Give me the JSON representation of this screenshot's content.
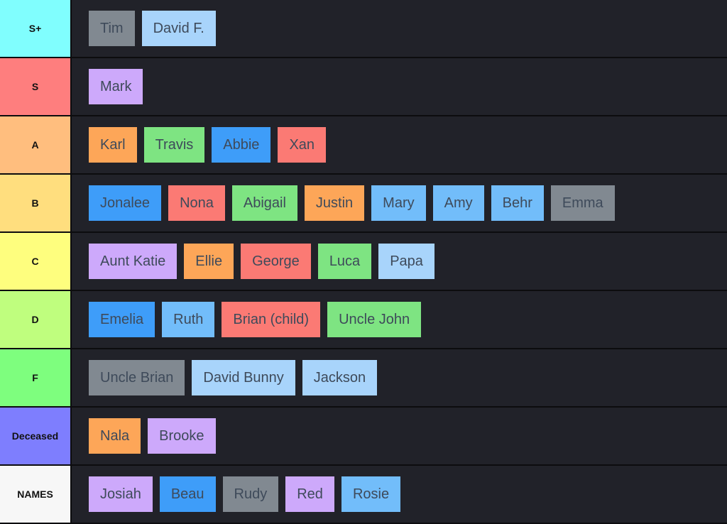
{
  "palette": {
    "gray": "#818991",
    "lightblue": "#a8d4fb",
    "purple": "#cda9fb",
    "orange": "#fda658",
    "green": "#7ee482",
    "blue": "#3e9df9",
    "red": "#fb7a74",
    "skyblue": "#72bdfa"
  },
  "tiers": [
    {
      "label": "S+",
      "color": "#80fefe",
      "items": [
        {
          "name": "Tim",
          "color": "gray"
        },
        {
          "name": "David F.",
          "color": "lightblue"
        }
      ]
    },
    {
      "label": "S",
      "color": "#fe7e7e",
      "items": [
        {
          "name": "Mark",
          "color": "purple"
        }
      ]
    },
    {
      "label": "A",
      "color": "#ffbe7e",
      "items": [
        {
          "name": "Karl",
          "color": "orange"
        },
        {
          "name": "Travis",
          "color": "green"
        },
        {
          "name": "Abbie",
          "color": "blue"
        },
        {
          "name": "Xan",
          "color": "red"
        }
      ]
    },
    {
      "label": "B",
      "color": "#ffde7e",
      "items": [
        {
          "name": "Jonalee",
          "color": "blue"
        },
        {
          "name": "Nona",
          "color": "red"
        },
        {
          "name": "Abigail",
          "color": "green"
        },
        {
          "name": "Justin",
          "color": "orange"
        },
        {
          "name": "Mary",
          "color": "skyblue"
        },
        {
          "name": "Amy",
          "color": "skyblue"
        },
        {
          "name": "Behr",
          "color": "skyblue"
        },
        {
          "name": "Emma",
          "color": "gray"
        }
      ]
    },
    {
      "label": "C",
      "color": "#fefe7e",
      "items": [
        {
          "name": "Aunt Katie",
          "color": "purple"
        },
        {
          "name": "Ellie",
          "color": "orange"
        },
        {
          "name": "George",
          "color": "red"
        },
        {
          "name": "Luca",
          "color": "green"
        },
        {
          "name": "Papa",
          "color": "lightblue"
        }
      ]
    },
    {
      "label": "D",
      "color": "#bffe7e",
      "items": [
        {
          "name": "Emelia",
          "color": "blue"
        },
        {
          "name": "Ruth",
          "color": "skyblue"
        },
        {
          "name": "Brian (child)",
          "color": "red"
        },
        {
          "name": "Uncle John",
          "color": "green"
        }
      ]
    },
    {
      "label": "F",
      "color": "#7efe7e",
      "items": [
        {
          "name": "Uncle Brian",
          "color": "gray"
        },
        {
          "name": "David Bunny",
          "color": "lightblue"
        },
        {
          "name": "Jackson",
          "color": "lightblue"
        }
      ]
    },
    {
      "label": "Deceased",
      "color": "#7e7efe",
      "items": [
        {
          "name": "Nala",
          "color": "orange"
        },
        {
          "name": "Brooke",
          "color": "purple"
        }
      ]
    },
    {
      "label": "NAMES",
      "color": "#f7f7f7",
      "items": [
        {
          "name": "Josiah",
          "color": "purple"
        },
        {
          "name": "Beau",
          "color": "blue"
        },
        {
          "name": "Rudy",
          "color": "gray"
        },
        {
          "name": "Red",
          "color": "purple"
        },
        {
          "name": "Rosie",
          "color": "skyblue"
        }
      ]
    }
  ]
}
